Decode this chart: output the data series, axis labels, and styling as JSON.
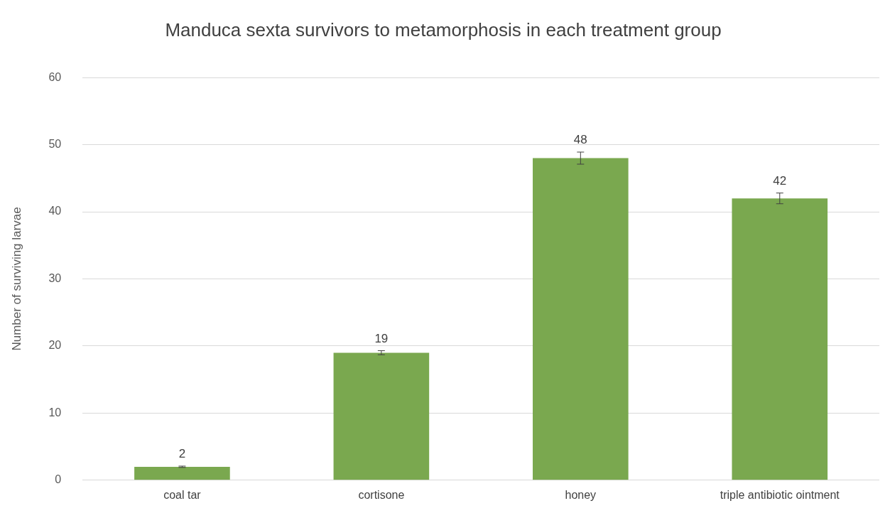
{
  "chart_data": {
    "type": "bar",
    "title": "Manduca sexta survivors to metamorphosis in each treatment group",
    "ylabel": "Number of surviving larvae",
    "categories": [
      "coal tar",
      "cortisone",
      "honey",
      "triple antibiotic ointment"
    ],
    "values": [
      2,
      19,
      48,
      42
    ],
    "errors": [
      0.1,
      0.3,
      0.9,
      0.8
    ],
    "color": "#7aa84f",
    "ylim": [
      0,
      60
    ],
    "yticks": [
      0,
      10,
      20,
      30,
      40,
      50,
      60
    ],
    "grid": "y",
    "data_labels": true,
    "legend": false
  }
}
